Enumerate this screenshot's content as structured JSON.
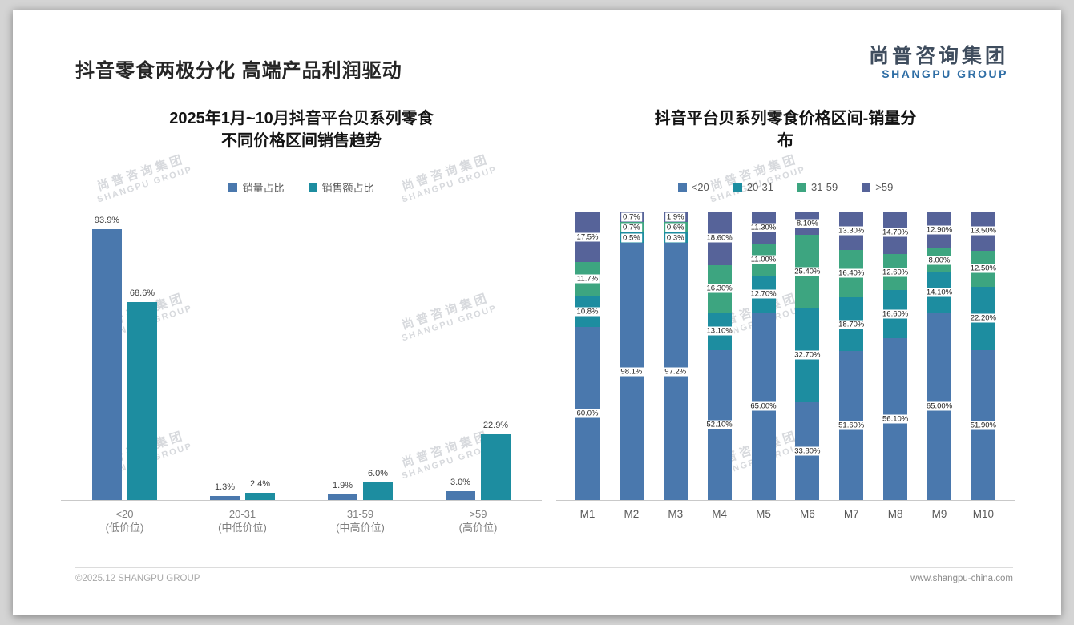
{
  "slide": {
    "header_title": "抖音零食两极分化 高端产品利润驱动",
    "logo": {
      "cn": "尚普咨询集团",
      "en": "SHANGPU GROUP"
    },
    "watermark": {
      "line1": "尚普咨询集团",
      "line2": "SHANGPU GROUP"
    },
    "footer": {
      "copyright": "©2025.12 SHANGPU GROUP",
      "website": "www.shangpu-china.com"
    }
  },
  "chart_data": [
    {
      "type": "bar",
      "variant": "grouped",
      "title": "2025年1月~10月抖音平台贝系列零食不同价格区间销售趋势",
      "title_lines": [
        "2025年1月~10月抖音平台贝系列零食",
        "不同价格区间销售趋势"
      ],
      "xlabel": "",
      "ylabel": "",
      "ylim": [
        0,
        100
      ],
      "grid": false,
      "legend_position": "top",
      "value_suffix": "%",
      "categories": [
        "<20",
        "20-31",
        "31-59",
        ">59"
      ],
      "category_sublabels": [
        "(低价位)",
        "(中低价位)",
        "(中高价位)",
        "(高价位)"
      ],
      "series": [
        {
          "name": "销量占比",
          "color": "#4a78ad",
          "values": [
            93.9,
            1.3,
            1.9,
            3.0
          ],
          "labels": [
            "93.9%",
            "1.3%",
            "1.9%",
            "3.0%"
          ]
        },
        {
          "name": "销售额占比",
          "color": "#1d8da0",
          "values": [
            68.6,
            2.4,
            6.0,
            22.9
          ],
          "labels": [
            "68.6%",
            "2.4%",
            "6.0%",
            "22.9%"
          ]
        }
      ]
    },
    {
      "type": "bar",
      "variant": "stacked-100",
      "title": "抖音平台贝系列零食价格区间-销量分布",
      "title_lines": [
        "抖音平台贝系列零食价格区间-销量分",
        "布"
      ],
      "xlabel": "",
      "ylabel": "",
      "ylim": [
        0,
        100
      ],
      "grid": false,
      "legend_position": "top",
      "value_suffix": "%",
      "categories": [
        "M1",
        "M2",
        "M3",
        "M4",
        "M5",
        "M6",
        "M7",
        "M8",
        "M9",
        "M10"
      ],
      "series": [
        {
          "name": "<20",
          "color": "#4a78ad",
          "values": [
            60.0,
            98.1,
            97.2,
            52.1,
            65.0,
            33.8,
            51.6,
            56.1,
            65.0,
            51.9
          ],
          "labels": [
            "60.0%",
            "98.1%",
            "97.2%",
            "52.10%",
            "65.00%",
            "33.80%",
            "51.60%",
            "56.10%",
            "65.00%",
            "51.90%"
          ]
        },
        {
          "name": "20-31",
          "color": "#1d8da0",
          "values": [
            10.8,
            0.5,
            0.3,
            13.1,
            12.7,
            32.7,
            18.7,
            16.6,
            14.1,
            22.2
          ],
          "labels": [
            "10.8%",
            "0.5%",
            "0.3%",
            "13.10%",
            "12.70%",
            "32.70%",
            "18.70%",
            "16.60%",
            "14.10%",
            "22.20%"
          ]
        },
        {
          "name": "31-59",
          "color": "#3da580",
          "values": [
            11.7,
            0.7,
            0.6,
            16.3,
            11.0,
            25.4,
            16.4,
            12.6,
            8.0,
            12.5
          ],
          "labels": [
            "11.7%",
            "0.7%",
            "0.6%",
            "16.30%",
            "11.00%",
            "25.40%",
            "16.40%",
            "12.60%",
            "8.00%",
            "12.50%"
          ]
        },
        {
          "name": ">59",
          "color": "#566399",
          "values": [
            17.5,
            0.7,
            1.9,
            18.6,
            11.3,
            8.1,
            13.3,
            14.7,
            12.9,
            13.5
          ],
          "labels": [
            "17.5%",
            "0.7%",
            "1.9%",
            "18.60%",
            "11.30%",
            "8.10%",
            "13.30%",
            "14.70%",
            "12.90%",
            "13.50%"
          ]
        }
      ]
    }
  ]
}
